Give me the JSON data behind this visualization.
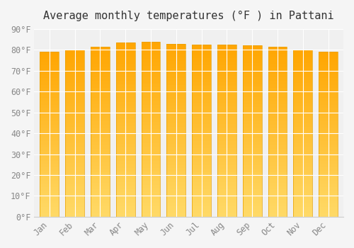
{
  "title": "Average monthly temperatures (°F ) in Pattani",
  "months": [
    "Jan",
    "Feb",
    "Mar",
    "Apr",
    "May",
    "Jun",
    "Jul",
    "Aug",
    "Sep",
    "Oct",
    "Nov",
    "Dec"
  ],
  "values": [
    79,
    80,
    81.5,
    83.5,
    84,
    83,
    82.5,
    82.5,
    82,
    81.5,
    80,
    79
  ],
  "bar_color_top": "#FFA500",
  "bar_color_bottom": "#FFD966",
  "bar_edge_color": "#E8A000",
  "background_color": "#f5f5f5",
  "plot_background_color": "#f0f0f0",
  "ylim": [
    0,
    90
  ],
  "yticks": [
    0,
    10,
    20,
    30,
    40,
    50,
    60,
    70,
    80,
    90
  ],
  "ytick_labels": [
    "0°F",
    "10°F",
    "20°F",
    "30°F",
    "40°F",
    "50°F",
    "60°F",
    "70°F",
    "80°F",
    "90°F"
  ],
  "grid_color": "#ffffff",
  "title_fontsize": 11,
  "tick_fontsize": 8.5,
  "font_family": "monospace"
}
